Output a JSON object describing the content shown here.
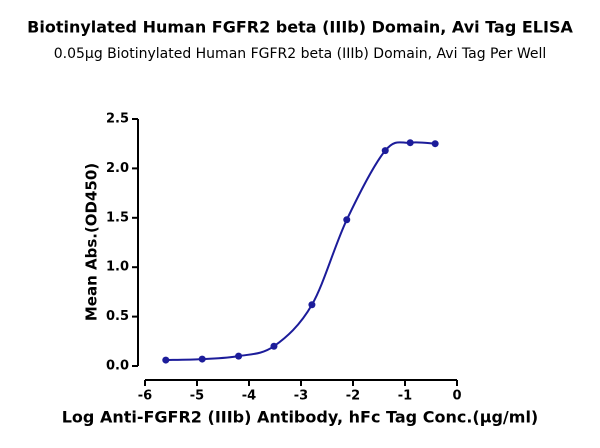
{
  "chart_data": {
    "type": "scatter",
    "title": "Biotinylated Human FGFR2 beta (IIIb) Domain, Avi Tag ELISA",
    "subtitle": "0.05μg Biotinylated Human FGFR2 beta (IIIb) Domain, Avi Tag Per Well",
    "x_label": "Log Anti-FGFR2 (IIIb) Antibody, hFc Tag Conc.(μg/ml)",
    "y_label": "Mean Abs.(OD450)",
    "series": [
      {
        "color": "#1c1c9a",
        "x": [
          -5.6,
          -4.9,
          -4.2,
          -3.52,
          -2.79,
          -2.12,
          -1.38,
          -0.9,
          -0.42
        ],
        "values": [
          0.06,
          0.07,
          0.1,
          0.2,
          0.62,
          1.48,
          2.18,
          2.26,
          2.25
        ]
      }
    ],
    "xlim": [
      -6,
      0
    ],
    "xticks": [
      -6,
      -5,
      -4,
      -3,
      -2,
      -1,
      0
    ],
    "ylim": [
      0,
      2.5
    ],
    "yticks": [
      {
        "value": 0,
        "label": "0.0"
      },
      {
        "value": 0.5,
        "label": "0.5"
      },
      {
        "value": 1,
        "label": "1.0"
      },
      {
        "value": 1.5,
        "label": "1.5"
      },
      {
        "value": 2,
        "label": "2.0"
      },
      {
        "value": 2.5,
        "label": "2.5"
      }
    ]
  }
}
